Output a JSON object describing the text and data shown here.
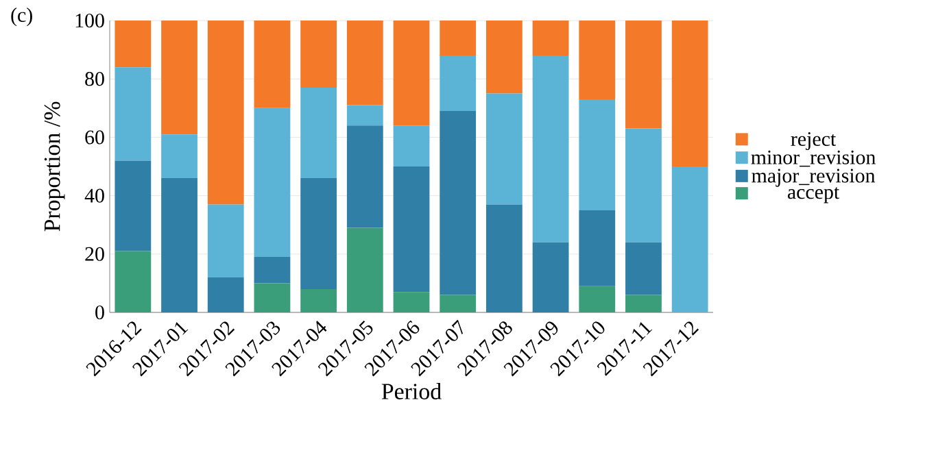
{
  "chart_data": {
    "type": "bar",
    "stacked": true,
    "xlabel": "Period",
    "ylabel": "Proportion /%",
    "categories": [
      "2016-12",
      "2017-01",
      "2017-02",
      "2017-03",
      "2017-04",
      "2017-05",
      "2017-06",
      "2017-07",
      "2017-08",
      "2017-09",
      "2017-10",
      "2017-11",
      "2017-12"
    ],
    "series": [
      {
        "name": "accept",
        "color": "#3a9e7a",
        "values": [
          21,
          0,
          0,
          10,
          8,
          29,
          7,
          6,
          0,
          0,
          9,
          6,
          0
        ]
      },
      {
        "name": "major_revision",
        "color": "#2f7fa6",
        "values": [
          31,
          46,
          12,
          9,
          38,
          35,
          43,
          63,
          37,
          24,
          26,
          18,
          0
        ]
      },
      {
        "name": "minor_revision",
        "color": "#5bb4d6",
        "values": [
          32,
          15,
          25,
          51,
          31,
          7,
          14,
          19,
          38,
          64,
          38,
          39,
          50
        ]
      },
      {
        "name": "reject",
        "color": "#f47a2a",
        "values": [
          16,
          39,
          63,
          30,
          23,
          29,
          36,
          12,
          25,
          12,
          27,
          37,
          50
        ]
      }
    ],
    "ylim": [
      0,
      100
    ],
    "yticks": [
      0,
      20,
      40,
      60,
      80,
      100
    ],
    "grid": "y",
    "legend": "right",
    "annotations": [
      "(c)"
    ]
  }
}
